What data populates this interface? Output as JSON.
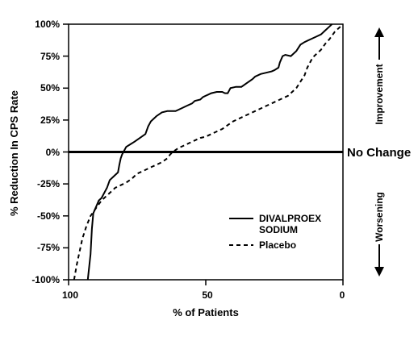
{
  "chart_data": {
    "type": "line",
    "xlabel": "% of Patients",
    "ylabel": "% Reduction In CPS Rate",
    "xlim": [
      100,
      0
    ],
    "ylim": [
      -100,
      100
    ],
    "x_ticks": [
      "100",
      "50",
      "0"
    ],
    "y_ticks": [
      "100%",
      "75%",
      "50%",
      "25%",
      "0%",
      "-25%",
      "-50%",
      "-75%",
      "-100%"
    ],
    "reference_line": {
      "y": 0,
      "label": "No Change"
    },
    "annotations": {
      "improvement": "Improvement",
      "worsening": "Worsening"
    },
    "legend_position": "bottom-right",
    "series": [
      {
        "name": "DIVALPROEX SODIUM",
        "style": "solid",
        "color": "#000000",
        "points": [
          [
            93,
            -100
          ],
          [
            92,
            -80
          ],
          [
            91.5,
            -60
          ],
          [
            91,
            -48
          ],
          [
            90,
            -43
          ],
          [
            89,
            -38
          ],
          [
            88,
            -36
          ],
          [
            86,
            -28
          ],
          [
            85,
            -22
          ],
          [
            83,
            -18
          ],
          [
            82,
            -16
          ],
          [
            81.5,
            -10
          ],
          [
            81,
            -5
          ],
          [
            80.5,
            -2
          ],
          [
            80,
            0
          ],
          [
            79,
            4
          ],
          [
            77.5,
            6
          ],
          [
            76,
            8
          ],
          [
            74,
            11
          ],
          [
            72,
            14
          ],
          [
            71,
            20
          ],
          [
            70,
            24
          ],
          [
            68,
            28
          ],
          [
            66,
            31
          ],
          [
            64,
            32
          ],
          [
            61,
            32
          ],
          [
            59,
            34
          ],
          [
            57,
            36
          ],
          [
            55,
            38
          ],
          [
            54,
            40
          ],
          [
            52,
            41
          ],
          [
            51,
            43
          ],
          [
            49,
            45
          ],
          [
            48,
            46
          ],
          [
            46,
            47
          ],
          [
            44,
            47
          ],
          [
            43,
            46
          ],
          [
            42,
            46
          ],
          [
            41,
            50
          ],
          [
            39,
            51
          ],
          [
            37,
            51
          ],
          [
            35,
            54
          ],
          [
            33,
            57
          ],
          [
            32,
            59
          ],
          [
            30,
            61
          ],
          [
            28,
            62
          ],
          [
            26,
            63
          ],
          [
            25,
            64
          ],
          [
            23.5,
            66
          ],
          [
            23,
            70
          ],
          [
            22,
            75
          ],
          [
            21,
            76
          ],
          [
            19,
            75
          ],
          [
            18,
            77
          ],
          [
            17,
            79
          ],
          [
            15.5,
            84
          ],
          [
            14,
            86
          ],
          [
            12,
            88
          ],
          [
            10,
            90
          ],
          [
            8,
            92
          ],
          [
            6.5,
            95
          ],
          [
            5,
            98
          ],
          [
            4,
            100
          ]
        ]
      },
      {
        "name": "Placebo",
        "style": "dashed",
        "color": "#000000",
        "points": [
          [
            98,
            -100
          ],
          [
            97,
            -88
          ],
          [
            96,
            -78
          ],
          [
            95,
            -68
          ],
          [
            93.5,
            -58
          ],
          [
            92,
            -50
          ],
          [
            90,
            -44
          ],
          [
            88,
            -38
          ],
          [
            86,
            -34
          ],
          [
            84,
            -30
          ],
          [
            83,
            -28
          ],
          [
            81,
            -26
          ],
          [
            79,
            -24
          ],
          [
            77,
            -21
          ],
          [
            75,
            -17
          ],
          [
            73,
            -15
          ],
          [
            71,
            -13
          ],
          [
            69,
            -11
          ],
          [
            68,
            -10
          ],
          [
            66,
            -8
          ],
          [
            64,
            -5
          ],
          [
            63,
            -2
          ],
          [
            62,
            0
          ],
          [
            60,
            3
          ],
          [
            58,
            5
          ],
          [
            56,
            7
          ],
          [
            54,
            9
          ],
          [
            52,
            11
          ],
          [
            50,
            12
          ],
          [
            48,
            14
          ],
          [
            46,
            16
          ],
          [
            44,
            18
          ],
          [
            42,
            21
          ],
          [
            40,
            24
          ],
          [
            38,
            26
          ],
          [
            36,
            28
          ],
          [
            34,
            30
          ],
          [
            32,
            32
          ],
          [
            30,
            34
          ],
          [
            28,
            36
          ],
          [
            26,
            38
          ],
          [
            24,
            40
          ],
          [
            22,
            42
          ],
          [
            20,
            44
          ],
          [
            18.5,
            47
          ],
          [
            17,
            50
          ],
          [
            15.5,
            55
          ],
          [
            14,
            60
          ],
          [
            13,
            66
          ],
          [
            12,
            70
          ],
          [
            11,
            74
          ],
          [
            10,
            76
          ],
          [
            9,
            78
          ],
          [
            8,
            80
          ],
          [
            7,
            83
          ],
          [
            6,
            86
          ],
          [
            5,
            88
          ],
          [
            4,
            91
          ],
          [
            3,
            94
          ],
          [
            2,
            96
          ],
          [
            1,
            98
          ],
          [
            0,
            100
          ]
        ]
      }
    ]
  }
}
